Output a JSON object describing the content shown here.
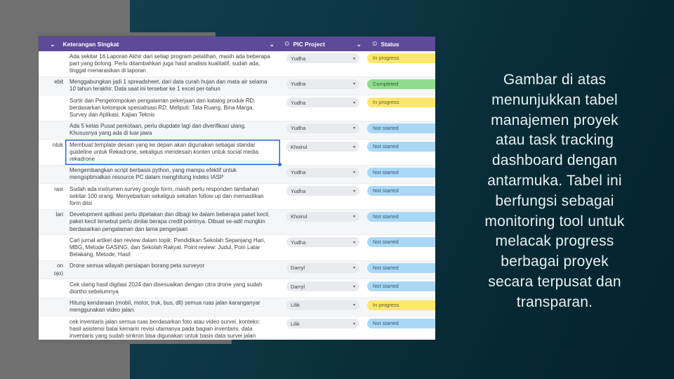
{
  "caption": {
    "lines": [
      "Gambar di atas",
      "menunjukkan tabel",
      "manajemen proyek",
      "atau task tracking",
      "dashboard dengan",
      "antarmuka. Tabel ini",
      "berfungsi sebagai",
      "monitoring tool untuk",
      "melacak progress",
      "berbagai proyek",
      "secara terpusat dan",
      "transparan."
    ]
  },
  "icons": {
    "chevron": "⌄",
    "chip_circle": "⊙",
    "dropdown_arrow": "▾"
  },
  "colors": {
    "header_purple": "#5d4a99",
    "accent_blue": "#2a6ad4",
    "chip_yellow": "#fbe76d",
    "chip_green": "#8fdc8f",
    "chip_blue": "#a9d8f5"
  },
  "table": {
    "header": {
      "col1": "Keterangan Singkat",
      "col2": "PIC Project",
      "col3": "Status"
    },
    "rows": [
      {
        "left": "",
        "desc": "Ada sekitar 16 Laporan Akhir dari setiap program pelatihan, masih ada beberapa part yang bolong. Perlu ditambahkan juga hasil analisis kualitatif, sudah ada, tinggal menarasikan di laporan",
        "pic": "Yudha",
        "status": "In progress",
        "selected": false
      },
      {
        "left": "ebit",
        "desc": "Menggabungkan jadi 1 spreadsheet, dari data curah hujan dan mata air selama 10 tahun terakhir. Data saat ini tersebar ke 1 excel per-tahun",
        "pic": "Yudha",
        "status": "Completed",
        "selected": false
      },
      {
        "left": "",
        "desc": "Sortir dan Pengelompokan pengalaman pekerjaan dan katalog produk RD, berdasarkan kelompok spesialisasi RD. Meliputi: Tata Ruang, Bina Marga, Survey dan Aplikasi, Kajian Teknis",
        "pic": "Yudha",
        "status": "In progress",
        "selected": false
      },
      {
        "left": "",
        "desc": "Ada 5 kelas Pusat perkotaan, perlu diupdate lagi dan diverifikasi ulang. Khususnya yang ada di luar jawa",
        "pic": "Yudha",
        "status": "Not started",
        "selected": false
      },
      {
        "left": "ntuk",
        "desc": "Membuat template desain yang ke depan akan digunakan sebagai standar guideline untuk Rekadrone, sekaligus mendesain konten untuk social media rekadrone",
        "pic": "Khoirul",
        "status": "Not started",
        "selected": true
      },
      {
        "left": "",
        "desc": "Mengembangkan script berbasis python, yang mampu efektif untuk mengoptimalkan resource PC dalam menghitung indeks IASP",
        "pic": "Yudha",
        "status": "Not started",
        "selected": false
      },
      {
        "left": "rasi",
        "desc": "Sudah ada instrumen survey google form, masih perlu responden tambahan sekitar 100 orang. Menyebarkan sekaligus sekalian follow up dan memastikan form diisi",
        "pic": "Yudha",
        "status": "Not started",
        "selected": false
      },
      {
        "left": "lari",
        "desc": "Development aplikasi perlu dipetakan dan dibagi ke dalam beberapa paket kecil, paket kecil tersebut perlu dinilai berapa credit pointnya. Dibuat se-adil mungkin berdasarkan pengalaman dan lama pengerjaan",
        "pic": "Khoirul",
        "status": "Not started",
        "selected": false
      },
      {
        "left": "",
        "desc": "Cari jurnal artikel dan review dalam topik: Pendidikan Sekolah Sepanjang Hari, MBG, Metode GASING, dan Sekolah Rakyat. Point review: Judul, Poin Latar Belakang, Metode, Hasil",
        "pic": "Yudha",
        "status": "Not started",
        "selected": false
      },
      {
        "left": "on\nojo)",
        "desc": "Drone semua wilayah persiapan borang peta surveyor",
        "pic": "Darryl",
        "status": "Not started",
        "selected": false
      },
      {
        "left": "",
        "desc": "Cek ulang hasil digitasi 2024 dan disesuaikan dengan citra drone yang sudah diortho sebelumnya",
        "pic": "Darryl",
        "status": "Not started",
        "selected": false
      },
      {
        "left": "",
        "desc": "Hitung kendaraan (mobil, motor, truk, bus, dll)  semua ruas jalan karanganyar menggunakan video jalan.",
        "pic": "Lilik",
        "status": "In progress",
        "selected": false
      },
      {
        "left": "",
        "desc": "cek inventaris jalan semua ruas berdasarkan foto atau video survei. konteks: hasil asistensi balai kemarin revisi utamanya pada bagian inventaris. data inventaris yang sudah sinkron bisa digunakan untuk basis data survei jalan berikutnya",
        "pic": "Lilik",
        "status": "Not started",
        "selected": false
      }
    ]
  }
}
